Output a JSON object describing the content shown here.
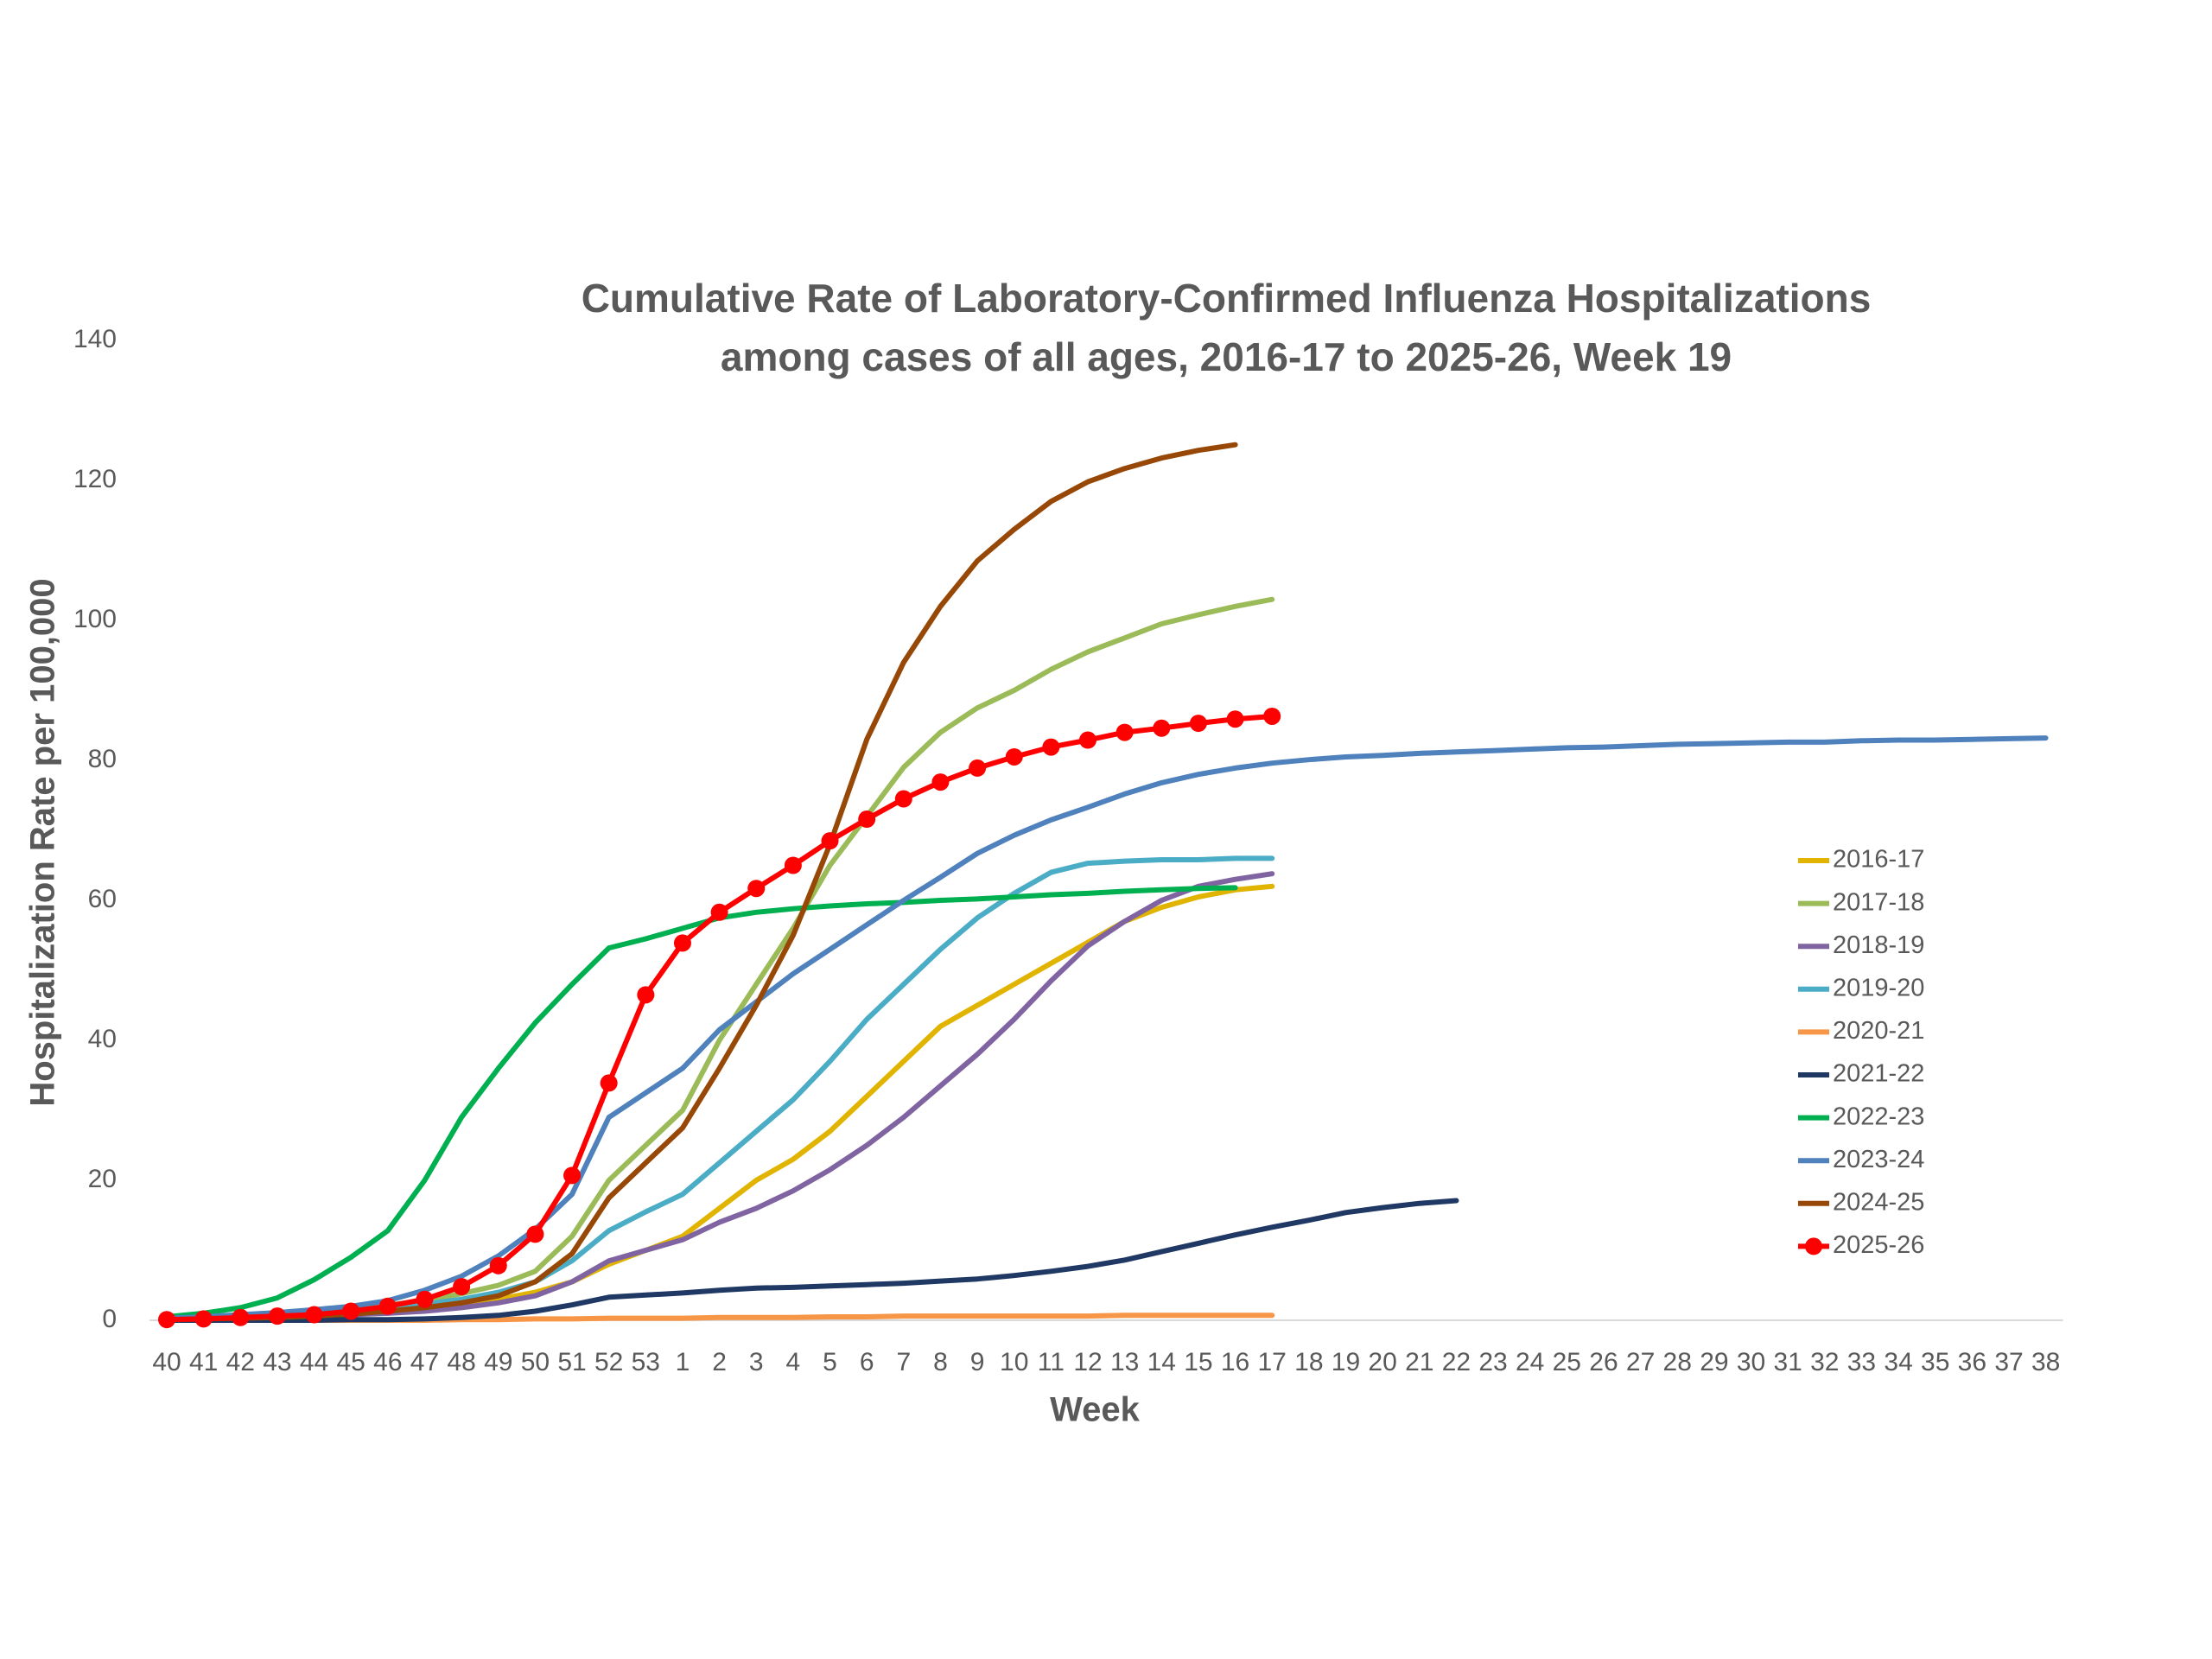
{
  "chart_data": {
    "type": "line",
    "title": [
      "Cumulative Rate of Laboratory-Confirmed Influenza Hospitalizations",
      "among cases of all ages, 2016-17 to 2025-26, Week 19"
    ],
    "xlabel": "Week",
    "ylabel": "Hospitalization Rate per 100,000",
    "categories": [
      "40",
      "41",
      "42",
      "43",
      "44",
      "45",
      "46",
      "47",
      "48",
      "49",
      "50",
      "51",
      "52",
      "53",
      "1",
      "2",
      "3",
      "4",
      "5",
      "6",
      "7",
      "8",
      "9",
      "10",
      "11",
      "12",
      "13",
      "14",
      "15",
      "16",
      "17",
      "18",
      "19",
      "20",
      "21",
      "22",
      "23",
      "24",
      "25",
      "26",
      "27",
      "28",
      "29",
      "30",
      "31",
      "32",
      "33",
      "34",
      "35",
      "36",
      "37",
      "38"
    ],
    "ylim": [
      0,
      140
    ],
    "yticks": [
      0,
      20,
      40,
      60,
      80,
      100,
      120,
      140
    ],
    "grid": false,
    "legend": "right",
    "series": [
      {
        "name": "2016-17",
        "color": "#e0b400",
        "values": [
          0,
          0.2,
          0.3,
          0.5,
          0.7,
          1,
          1.3,
          1.7,
          2.2,
          3,
          4,
          5.5,
          8,
          10,
          12,
          16,
          20,
          23,
          27,
          32,
          37,
          42,
          45,
          48,
          51,
          54,
          57,
          59,
          60.5,
          61.5,
          62,
          null,
          null,
          null,
          null,
          null,
          null,
          null,
          null,
          null,
          null,
          null,
          null,
          null,
          null,
          null,
          null,
          null,
          null,
          null,
          null,
          null
        ]
      },
      {
        "name": "2017-18",
        "color": "#9bbb59",
        "values": [
          0.3,
          0.5,
          0.7,
          1,
          1.3,
          1.7,
          2.2,
          2.8,
          3.8,
          5,
          7,
          12,
          20,
          25,
          30,
          40,
          48,
          56,
          65,
          72,
          79,
          84,
          87.5,
          90,
          93,
          95.5,
          97.5,
          99.5,
          100.8,
          102,
          103,
          null,
          null,
          null,
          null,
          null,
          null,
          null,
          null,
          null,
          null,
          null,
          null,
          null,
          null,
          null,
          null,
          null,
          null,
          null,
          null,
          null
        ]
      },
      {
        "name": "2018-19",
        "color": "#8064a2",
        "values": [
          0.1,
          0.2,
          0.3,
          0.4,
          0.6,
          0.8,
          1,
          1.3,
          1.8,
          2.5,
          3.5,
          5.5,
          8.5,
          10,
          11.5,
          14,
          16,
          18.5,
          21.5,
          25,
          29,
          33.5,
          38,
          43,
          48.5,
          53.5,
          57,
          60,
          62,
          63,
          63.8,
          null,
          null,
          null,
          null,
          null,
          null,
          null,
          null,
          null,
          null,
          null,
          null,
          null,
          null,
          null,
          null,
          null,
          null,
          null,
          null,
          null
        ]
      },
      {
        "name": "2019-20",
        "color": "#4bacc6",
        "values": [
          0.1,
          0.2,
          0.3,
          0.5,
          0.8,
          1.2,
          1.7,
          2.3,
          3,
          4,
          5.5,
          8.5,
          12.8,
          15.5,
          18,
          22.5,
          27,
          31.5,
          37,
          43,
          48,
          53,
          57.5,
          61,
          64,
          65.3,
          65.6,
          65.8,
          65.8,
          66,
          66,
          null,
          null,
          null,
          null,
          null,
          null,
          null,
          null,
          null,
          null,
          null,
          null,
          null,
          null,
          null,
          null,
          null,
          null,
          null,
          null,
          null
        ]
      },
      {
        "name": "2020-21",
        "color": "#f79646",
        "values": [
          0,
          0,
          0,
          0,
          0,
          0,
          0,
          0,
          0.1,
          0.1,
          0.2,
          0.2,
          0.3,
          0.3,
          0.3,
          0.4,
          0.4,
          0.4,
          0.5,
          0.5,
          0.6,
          0.6,
          0.6,
          0.6,
          0.6,
          0.6,
          0.7,
          0.7,
          0.7,
          0.7,
          0.7,
          null,
          null,
          null,
          null,
          null,
          null,
          null,
          null,
          null,
          null,
          null,
          null,
          null,
          null,
          null,
          null,
          null,
          null,
          null,
          null,
          null
        ]
      },
      {
        "name": "2021-22",
        "color": "#1f3864",
        "values": [
          0,
          0,
          0,
          0,
          0,
          0.1,
          0.1,
          0.2,
          0.4,
          0.7,
          1.3,
          2.2,
          3.3,
          3.6,
          3.9,
          4.3,
          4.6,
          4.7,
          4.9,
          5.1,
          5.3,
          5.6,
          5.9,
          6.4,
          7,
          7.7,
          8.6,
          9.8,
          11,
          12.2,
          13.3,
          14.3,
          15.4,
          16.1,
          16.7,
          17.1,
          null,
          null,
          null,
          null,
          null,
          null,
          null,
          null,
          null,
          null,
          null,
          null,
          null,
          null,
          null,
          null
        ]
      },
      {
        "name": "2022-23",
        "color": "#00b050",
        "values": [
          0.5,
          1,
          1.8,
          3.2,
          5.8,
          9,
          12.8,
          20,
          29,
          36,
          42.5,
          48,
          53.2,
          54.5,
          56,
          57.5,
          58.3,
          58.8,
          59.2,
          59.5,
          59.7,
          60,
          60.2,
          60.5,
          60.8,
          61,
          61.3,
          61.5,
          61.7,
          61.8,
          null,
          null,
          null,
          null,
          null,
          null,
          null,
          null,
          null,
          null,
          null,
          null,
          null,
          null,
          null,
          null,
          null,
          null,
          null,
          null,
          null,
          null
        ]
      },
      {
        "name": "2023-24",
        "color": "#4f81bd",
        "values": [
          0.3,
          0.5,
          0.8,
          1.1,
          1.5,
          2,
          2.8,
          4.3,
          6.3,
          9.2,
          13,
          18,
          29,
          32.5,
          36,
          41.5,
          45.5,
          49.5,
          53,
          56.5,
          60,
          63.3,
          66.7,
          69.3,
          71.5,
          73.3,
          75.2,
          76.8,
          78,
          78.9,
          79.6,
          80.1,
          80.5,
          80.7,
          81,
          81.2,
          81.4,
          81.6,
          81.8,
          81.9,
          82.1,
          82.3,
          82.4,
          82.5,
          82.6,
          82.6,
          82.8,
          82.9,
          82.9,
          83,
          83.1,
          83.2
        ]
      },
      {
        "name": "2024-25",
        "color": "#974706",
        "values": [
          0.1,
          0.2,
          0.3,
          0.4,
          0.6,
          0.9,
          1.3,
          1.8,
          2.5,
          3.5,
          5.5,
          9.5,
          17.5,
          22.5,
          27.5,
          36,
          45,
          55,
          68,
          83,
          94,
          102,
          108.5,
          113,
          117,
          119.8,
          121.7,
          123.2,
          124.3,
          125.1,
          null,
          null,
          null,
          null,
          null,
          null,
          null,
          null,
          null,
          null,
          null,
          null,
          null,
          null,
          null,
          null,
          null,
          null,
          null,
          null,
          null,
          null
        ]
      },
      {
        "name": "2025-26",
        "color": "#ff0000",
        "marker": true,
        "values": [
          0.1,
          0.2,
          0.4,
          0.6,
          0.8,
          1.3,
          2,
          3,
          4.8,
          7.8,
          12.3,
          20.7,
          33.9,
          46.5,
          53.9,
          58.3,
          61.7,
          65,
          68.5,
          71.6,
          74.5,
          76.9,
          78.9,
          80.5,
          81.9,
          82.9,
          84,
          84.6,
          85.3,
          85.9,
          86.3,
          null,
          null,
          null,
          null,
          null,
          null,
          null,
          null,
          null,
          null,
          null,
          null,
          null,
          null,
          null,
          null,
          null,
          null,
          null,
          null,
          null
        ]
      }
    ]
  }
}
